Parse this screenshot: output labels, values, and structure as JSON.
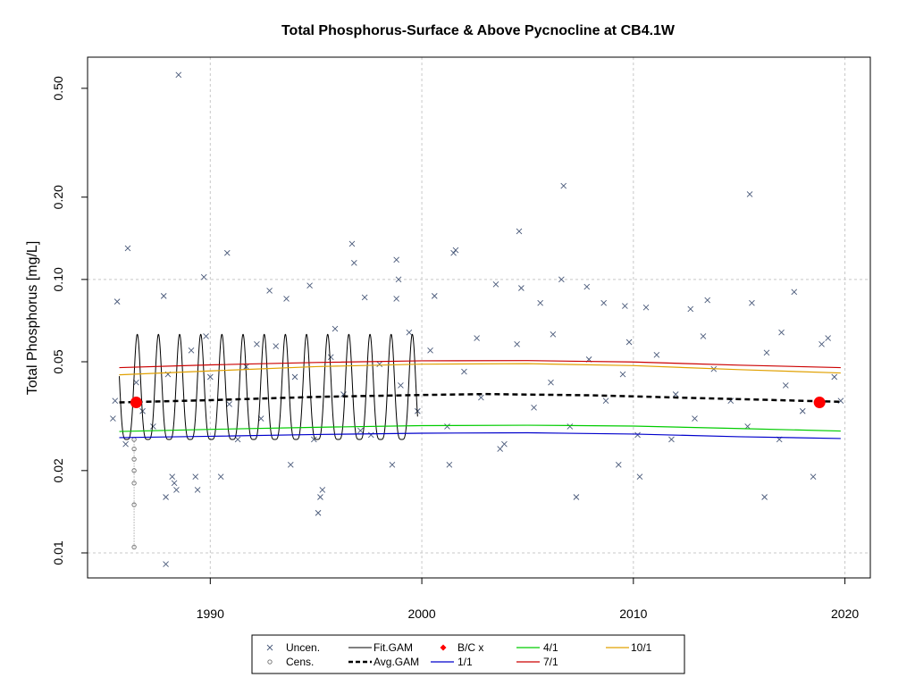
{
  "chart_data": {
    "type": "scatter",
    "title": "Total Phosphorus-Surface & Above Pycnocline at CB4.1W",
    "xlabel": "",
    "ylabel": "Total Phosphorus [mg/L]",
    "log_y": true,
    "xlim": [
      1984.2,
      2021.2
    ],
    "ylim": [
      0.0081,
      0.65
    ],
    "x_ticks": [
      1990,
      2000,
      2010,
      2020
    ],
    "x_tick_labels": [
      "1990",
      "2000",
      "2010",
      "2020"
    ],
    "y_ticks": [
      0.01,
      0.02,
      0.05,
      0.1,
      0.2,
      0.5
    ],
    "y_tick_labels": [
      "0.01",
      "0.02",
      "0.05",
      "0.10",
      "0.20",
      "0.50"
    ],
    "grid": true,
    "legend_position": "bottom",
    "fit_gam": {
      "start": 1985.7,
      "end": 1999.8,
      "trough": 0.026,
      "peak": 0.063,
      "peak_phase": 0.55
    },
    "series": [
      {
        "name": "Uncen.",
        "kind": "points",
        "color": "#4a5a7a",
        "points": [
          [
            1988.5,
            0.56
          ],
          [
            1986.1,
            0.13
          ],
          [
            1990.8,
            0.125
          ],
          [
            1989.7,
            0.102
          ],
          [
            1996.7,
            0.135
          ],
          [
            1996.8,
            0.115
          ],
          [
            1998.8,
            0.118
          ],
          [
            1998.9,
            0.1
          ],
          [
            1998.8,
            0.085
          ],
          [
            1997.3,
            0.086
          ],
          [
            2001.5,
            0.125
          ],
          [
            2001.6,
            0.128
          ],
          [
            2004.6,
            0.15
          ],
          [
            2006.7,
            0.22
          ],
          [
            2006.6,
            0.1
          ],
          [
            2007.8,
            0.094
          ],
          [
            2008.6,
            0.082
          ],
          [
            2015.5,
            0.205
          ],
          [
            2015.6,
            0.082
          ],
          [
            2017.6,
            0.09
          ],
          [
            1992.8,
            0.091
          ],
          [
            1994.7,
            0.095
          ],
          [
            2000.6,
            0.087
          ],
          [
            2003.5,
            0.096
          ],
          [
            2004.7,
            0.093
          ],
          [
            2005.6,
            0.082
          ],
          [
            2012.7,
            0.078
          ],
          [
            2013.5,
            0.084
          ],
          [
            2009.6,
            0.08
          ],
          [
            2010.6,
            0.079
          ],
          [
            1985.6,
            0.083
          ],
          [
            1987.8,
            0.087
          ],
          [
            1993.6,
            0.085
          ],
          [
            1987.9,
            0.016
          ],
          [
            1988.2,
            0.019
          ],
          [
            1988.3,
            0.018
          ],
          [
            1988.4,
            0.017
          ],
          [
            1989.3,
            0.019
          ],
          [
            1989.4,
            0.017
          ],
          [
            1990.5,
            0.019
          ],
          [
            1993.8,
            0.021
          ],
          [
            1995.2,
            0.016
          ],
          [
            1995.3,
            0.017
          ],
          [
            1995.1,
            0.014
          ],
          [
            1998.6,
            0.021
          ],
          [
            2001.3,
            0.021
          ],
          [
            2007.3,
            0.016
          ],
          [
            2009.3,
            0.021
          ],
          [
            2010.3,
            0.019
          ],
          [
            2016.2,
            0.016
          ],
          [
            2018.5,
            0.019
          ],
          [
            1987.9,
            0.0091
          ],
          [
            1985.4,
            0.031
          ],
          [
            1985.5,
            0.036
          ],
          [
            1986.0,
            0.025
          ],
          [
            1986.8,
            0.033
          ],
          [
            1987.3,
            0.029
          ],
          [
            1988.0,
            0.045
          ],
          [
            1989.1,
            0.055
          ],
          [
            1990.0,
            0.044
          ],
          [
            1990.9,
            0.035
          ],
          [
            1991.7,
            0.048
          ],
          [
            1992.4,
            0.031
          ],
          [
            1993.1,
            0.057
          ],
          [
            1994.0,
            0.044
          ],
          [
            1994.9,
            0.026
          ],
          [
            1995.7,
            0.052
          ],
          [
            1996.3,
            0.038
          ],
          [
            1997.1,
            0.028
          ],
          [
            1998.0,
            0.049
          ],
          [
            1999.0,
            0.041
          ],
          [
            1999.8,
            0.033
          ],
          [
            2000.4,
            0.055
          ],
          [
            2001.2,
            0.029
          ],
          [
            2002.0,
            0.046
          ],
          [
            2002.8,
            0.037
          ],
          [
            2003.7,
            0.024
          ],
          [
            2004.5,
            0.058
          ],
          [
            2005.3,
            0.034
          ],
          [
            2006.1,
            0.042
          ],
          [
            2007.0,
            0.029
          ],
          [
            2007.9,
            0.051
          ],
          [
            2008.7,
            0.036
          ],
          [
            2009.5,
            0.045
          ],
          [
            2010.2,
            0.027
          ],
          [
            2011.1,
            0.053
          ],
          [
            2012.0,
            0.038
          ],
          [
            2012.9,
            0.031
          ],
          [
            2013.8,
            0.047
          ],
          [
            2014.6,
            0.036
          ],
          [
            2015.4,
            0.029
          ],
          [
            2016.3,
            0.054
          ],
          [
            2017.2,
            0.041
          ],
          [
            2018.0,
            0.033
          ],
          [
            2018.9,
            0.058
          ],
          [
            2019.5,
            0.044
          ],
          [
            2019.8,
            0.036
          ],
          [
            1986.5,
            0.042
          ],
          [
            1989.8,
            0.062
          ],
          [
            1992.2,
            0.058
          ],
          [
            1995.9,
            0.066
          ],
          [
            1999.4,
            0.064
          ],
          [
            2002.6,
            0.061
          ],
          [
            2006.2,
            0.063
          ],
          [
            2009.8,
            0.059
          ],
          [
            2013.3,
            0.062
          ],
          [
            2017.0,
            0.064
          ],
          [
            2019.2,
            0.061
          ],
          [
            1991.3,
            0.026
          ],
          [
            1997.6,
            0.027
          ],
          [
            2003.9,
            0.025
          ],
          [
            2011.8,
            0.026
          ],
          [
            2016.9,
            0.026
          ]
        ]
      },
      {
        "name": "Cens.",
        "kind": "points",
        "color": "#6f6f6f",
        "points": [
          [
            1986.4,
            0.0105
          ],
          [
            1986.4,
            0.015
          ],
          [
            1986.4,
            0.018
          ],
          [
            1986.4,
            0.02
          ],
          [
            1986.4,
            0.022
          ],
          [
            1986.4,
            0.024
          ],
          [
            1986.4,
            0.026
          ]
        ]
      },
      {
        "name": "Fit.GAM",
        "kind": "seasonal-line",
        "color": "#000000",
        "values": []
      },
      {
        "name": "Avg.GAM",
        "kind": "line",
        "color": "#000000",
        "dash": true,
        "x": [
          1985.7,
          1990,
          1995,
          2000,
          2003,
          2008,
          2015,
          2019.8
        ],
        "y": [
          0.0355,
          0.0362,
          0.0372,
          0.0378,
          0.0381,
          0.0377,
          0.0365,
          0.0357
        ]
      },
      {
        "name": "B/C x",
        "kind": "markers",
        "color": "#ff0000",
        "x": [
          1986.5,
          2018.8
        ],
        "y": [
          0.0355,
          0.0355
        ]
      },
      {
        "name": "1/1",
        "kind": "line",
        "color": "#0000cc",
        "x": [
          1985.7,
          1990,
          1995,
          2000,
          2005,
          2010,
          2015,
          2019.8
        ],
        "y": [
          0.0264,
          0.0267,
          0.0271,
          0.0274,
          0.0275,
          0.0272,
          0.0266,
          0.0262
        ]
      },
      {
        "name": "4/1",
        "kind": "line",
        "color": "#00cc00",
        "x": [
          1985.7,
          1990,
          1995,
          2000,
          2005,
          2010,
          2015,
          2019.8
        ],
        "y": [
          0.0278,
          0.0283,
          0.0288,
          0.0292,
          0.0293,
          0.0291,
          0.0285,
          0.0279
        ]
      },
      {
        "name": "7/1",
        "kind": "line",
        "color": "#cc0000",
        "x": [
          1985.7,
          1990,
          1995,
          2000,
          2005,
          2010,
          2015,
          2019.8
        ],
        "y": [
          0.0476,
          0.0487,
          0.0497,
          0.0504,
          0.0505,
          0.0499,
          0.0486,
          0.0476
        ]
      },
      {
        "name": "10/1",
        "kind": "line",
        "color": "#e0a000",
        "x": [
          1985.7,
          1990,
          1995,
          2000,
          2005,
          2010,
          2015,
          2019.8
        ],
        "y": [
          0.0448,
          0.0463,
          0.048,
          0.049,
          0.0492,
          0.0484,
          0.0468,
          0.0455
        ]
      }
    ]
  }
}
